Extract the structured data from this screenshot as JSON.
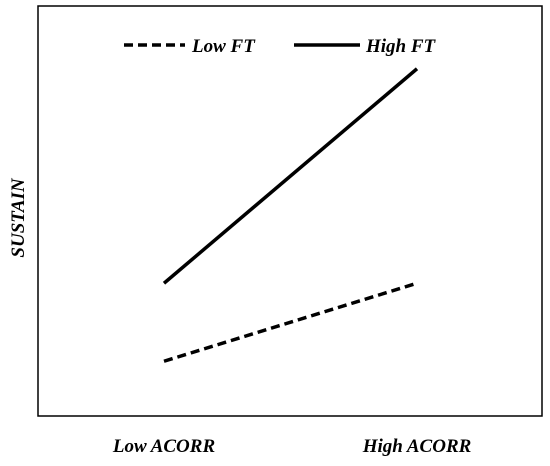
{
  "chart_data": {
    "type": "line",
    "categories": [
      "Low ACORR",
      "High ACORR"
    ],
    "series": [
      {
        "name": "Low FT",
        "values": [
          1.0,
          2.6
        ],
        "style": "dashed",
        "color": "#000000"
      },
      {
        "name": "High FT",
        "values": [
          2.6,
          7.0
        ],
        "style": "solid",
        "color": "#000000"
      }
    ],
    "title": "",
    "xlabel": "",
    "ylabel": "SUSTAIN",
    "ylim": [
      0,
      8
    ],
    "grid": false,
    "legend": "top-center"
  }
}
